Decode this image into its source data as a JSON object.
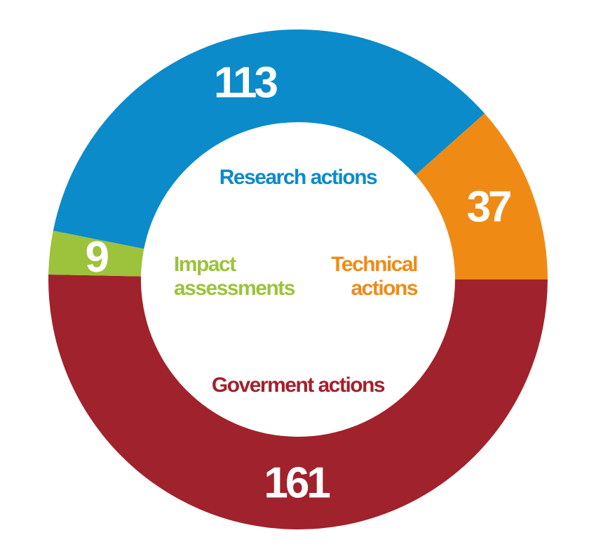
{
  "chart_data": {
    "type": "donut",
    "categories": [
      "Goverment actions",
      "Impact assessments",
      "Research actions",
      "Technical actions"
    ],
    "values": [
      161,
      9,
      113,
      37
    ],
    "colors": [
      "#a0222c",
      "#9dc23b",
      "#0b8bc9",
      "#ef8b15"
    ]
  }
}
